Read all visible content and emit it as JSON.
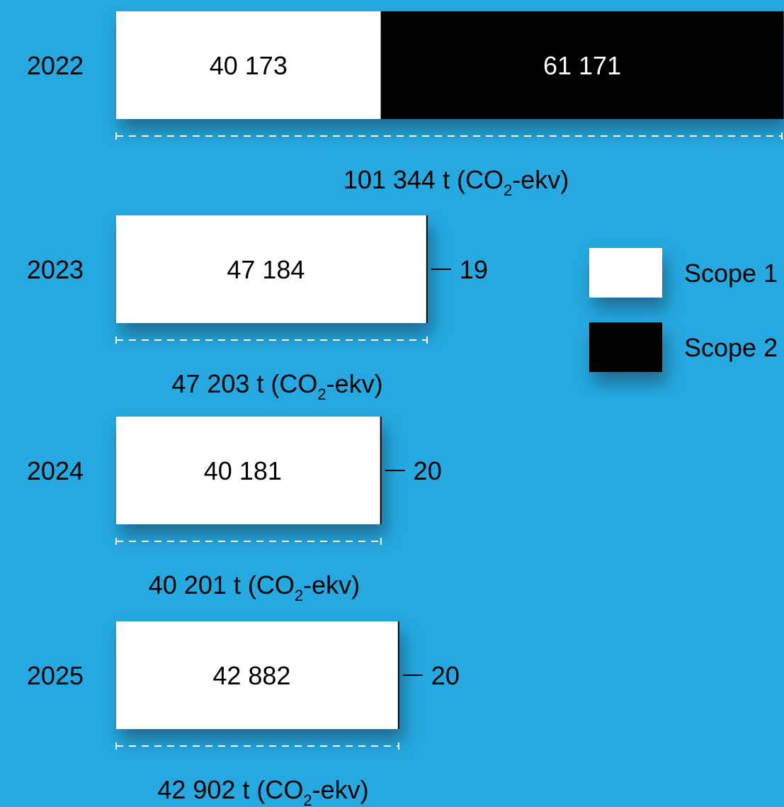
{
  "colors": {
    "background": "#26a9e0",
    "scope1": "#ffffff",
    "scope2": "#000000",
    "text": "#000000"
  },
  "legend": [
    {
      "label": "Scope 1",
      "color": "#ffffff"
    },
    {
      "label": "Scope 2",
      "color": "#000000"
    }
  ],
  "chart_data": {
    "type": "bar",
    "orientation": "horizontal",
    "stacked": true,
    "categories": [
      "2022",
      "2023",
      "2024",
      "2025"
    ],
    "series": [
      {
        "name": "Scope 1",
        "values": [
          40173,
          47184,
          40181,
          42882
        ]
      },
      {
        "name": "Scope 2",
        "values": [
          61171,
          19,
          20,
          20
        ]
      }
    ],
    "value_labels": {
      "scope1": [
        "40 173",
        "47 184",
        "40 181",
        "42 882"
      ],
      "scope2": [
        "61 171",
        "19",
        "20",
        "20"
      ]
    },
    "totals": [
      "101 344",
      "47 203",
      "40 201",
      "42 902"
    ],
    "total_unit_prefix": "t (CO",
    "total_unit_sub": "2",
    "total_unit_suffix": "-ekv)",
    "legend_position": "right",
    "grid": false
  }
}
